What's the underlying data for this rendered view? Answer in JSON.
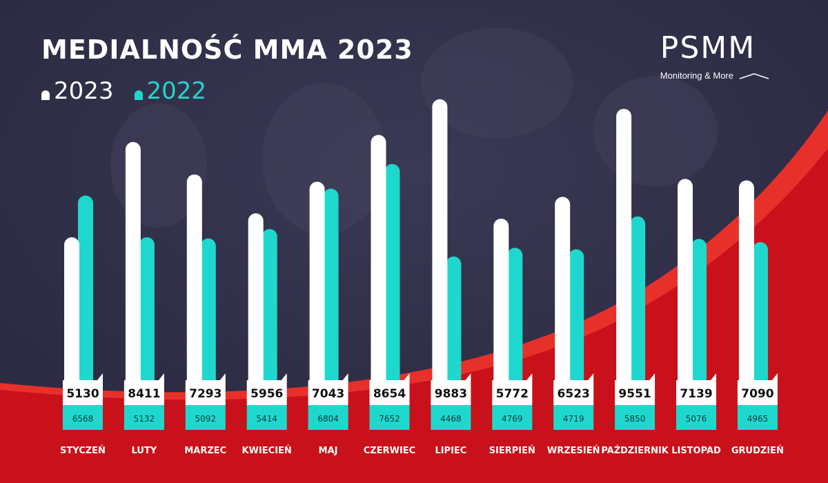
{
  "title": "MEDIALNOŚĆ MMA 2023",
  "logo": {
    "word": "PSMM",
    "tagline": "Monitoring & More"
  },
  "colors": {
    "background": "#2c2b43",
    "red": "#c8111a",
    "red_light": "#e8302a",
    "bar_2023": "#ffffff",
    "bar_2022": "#1fd8cd"
  },
  "chart_data": {
    "type": "bar",
    "title": "MEDIALNOŚĆ MMA 2023",
    "categories": [
      "STYCZEŃ",
      "LUTY",
      "MARZEC",
      "KWIECIEŃ",
      "MAJ",
      "CZERWIEC",
      "LIPIEC",
      "SIERPIEŃ",
      "WRZESIEŃ",
      "PAŹDZIERNIK",
      "LISTOPAD",
      "GRUDZIEŃ"
    ],
    "series": [
      {
        "name": "2023",
        "color": "#ffffff",
        "values": [
          5130,
          8411,
          7293,
          5956,
          7043,
          8654,
          9883,
          5772,
          6523,
          9551,
          7139,
          7090
        ]
      },
      {
        "name": "2022",
        "color": "#1fd8cd",
        "values": [
          6568,
          5132,
          5092,
          5414,
          6804,
          7652,
          4468,
          4769,
          4719,
          5850,
          5076,
          4965
        ]
      }
    ],
    "ylim": [
      0,
      10000
    ],
    "legend": "top-left",
    "grid": false
  }
}
